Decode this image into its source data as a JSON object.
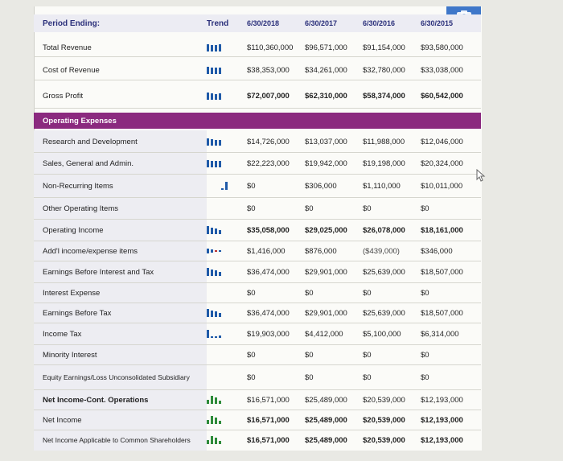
{
  "header": {
    "period_label": "Period Ending:",
    "trend_label": "Trend",
    "dates": [
      "6/30/2018",
      "6/30/2017",
      "6/30/2016",
      "6/30/2015"
    ]
  },
  "section": {
    "operating_expenses": "Operating Expenses"
  },
  "rows": [
    {
      "label": "Total Revenue",
      "values": [
        "$110,360,000",
        "$96,571,000",
        "$91,154,000",
        "$93,580,000"
      ]
    },
    {
      "label": "Cost of Revenue",
      "values": [
        "$38,353,000",
        "$34,261,000",
        "$32,780,000",
        "$33,038,000"
      ]
    },
    {
      "label": "Gross Profit",
      "values": [
        "$72,007,000",
        "$62,310,000",
        "$58,374,000",
        "$60,542,000"
      ]
    },
    {
      "label": "Research and Development",
      "values": [
        "$14,726,000",
        "$13,037,000",
        "$11,988,000",
        "$12,046,000"
      ]
    },
    {
      "label": "Sales, General and Admin.",
      "values": [
        "$22,223,000",
        "$19,942,000",
        "$19,198,000",
        "$20,324,000"
      ]
    },
    {
      "label": "Non-Recurring Items",
      "values": [
        "$0",
        "$306,000",
        "$1,110,000",
        "$10,011,000"
      ]
    },
    {
      "label": "Other Operating Items",
      "values": [
        "$0",
        "$0",
        "$0",
        "$0"
      ]
    },
    {
      "label": "Operating Income",
      "values": [
        "$35,058,000",
        "$29,025,000",
        "$26,078,000",
        "$18,161,000"
      ]
    },
    {
      "label": "Add'l income/expense items",
      "values": [
        "$1,416,000",
        "$876,000",
        "($439,000)",
        "$346,000"
      ]
    },
    {
      "label": "Earnings Before Interest and Tax",
      "values": [
        "$36,474,000",
        "$29,901,000",
        "$25,639,000",
        "$18,507,000"
      ]
    },
    {
      "label": "Interest Expense",
      "values": [
        "$0",
        "$0",
        "$0",
        "$0"
      ]
    },
    {
      "label": "Earnings Before Tax",
      "values": [
        "$36,474,000",
        "$29,901,000",
        "$25,639,000",
        "$18,507,000"
      ]
    },
    {
      "label": "Income Tax",
      "values": [
        "$19,903,000",
        "$4,412,000",
        "$5,100,000",
        "$6,314,000"
      ]
    },
    {
      "label": "Minority Interest",
      "values": [
        "$0",
        "$0",
        "$0",
        "$0"
      ]
    },
    {
      "label": "Equity Earnings/Loss Unconsolidated Subsidiary",
      "values": [
        "$0",
        "$0",
        "$0",
        "$0"
      ]
    },
    {
      "label": "Net Income-Cont. Operations",
      "values": [
        "$16,571,000",
        "$25,489,000",
        "$20,539,000",
        "$12,193,000"
      ]
    },
    {
      "label": "Net Income",
      "values": [
        "$16,571,000",
        "$25,489,000",
        "$20,539,000",
        "$12,193,000"
      ]
    },
    {
      "label": "Net Income Applicable to Common Shareholders",
      "values": [
        "$16,571,000",
        "$25,489,000",
        "$20,539,000",
        "$12,193,000"
      ]
    }
  ],
  "colors": {
    "accent": "#8b2a7f",
    "trend_blue": "#1f5aa8",
    "trend_green": "#2e8b3a",
    "header_text": "#2a2f7a"
  }
}
